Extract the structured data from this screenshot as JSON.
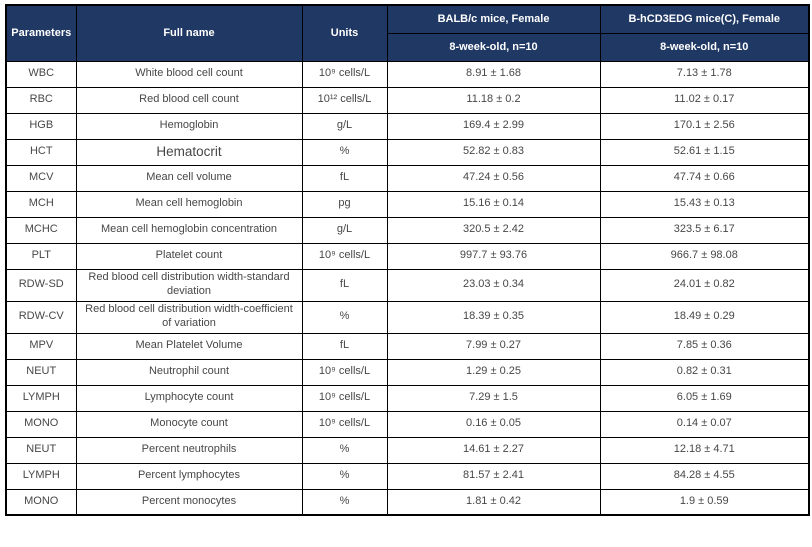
{
  "header": {
    "parameters": "Parameters",
    "full_name": "Full name",
    "units": "Units",
    "group1_title": "BALB/c mice, Female",
    "group1_subtitle": "8-week-old, n=10",
    "group2_title": "B-hCD3EDG mice(C), Female",
    "group2_subtitle": "8-week-old, n=10"
  },
  "colors": {
    "header_bg": "#1F3864",
    "header_text": "#FFFFFF",
    "border": "#000000",
    "body_text": "#474747"
  },
  "rows": [
    {
      "param": "WBC",
      "name": "White blood cell count",
      "units": "10⁹ cells/L",
      "balbc": "8.91 ± 1.68",
      "bhcd3edg": "7.13 ± 1.78"
    },
    {
      "param": "RBC",
      "name": "Red blood cell count",
      "units": "10¹² cells/L",
      "balbc": "11.18 ± 0.2",
      "bhcd3edg": "11.02 ± 0.17"
    },
    {
      "param": "HGB",
      "name": "Hemoglobin",
      "units": "g/L",
      "balbc": "169.4 ± 2.99",
      "bhcd3edg": "170.1 ± 2.56"
    },
    {
      "param": "HCT",
      "name": "Hematocrit",
      "units": "%",
      "balbc": "52.82 ± 0.83",
      "bhcd3edg": "52.61 ± 1.15"
    },
    {
      "param": "MCV",
      "name": "Mean cell volume",
      "units": "fL",
      "balbc": "47.24 ± 0.56",
      "bhcd3edg": "47.74 ± 0.66"
    },
    {
      "param": "MCH",
      "name": "Mean cell hemoglobin",
      "units": "pg",
      "balbc": "15.16 ± 0.14",
      "bhcd3edg": "15.43 ± 0.13"
    },
    {
      "param": "MCHC",
      "name": "Mean cell hemoglobin concentration",
      "units": "g/L",
      "balbc": "320.5 ± 2.42",
      "bhcd3edg": "323.5 ± 6.17"
    },
    {
      "param": "PLT",
      "name": "Platelet count",
      "units": "10⁹ cells/L",
      "balbc": "997.7 ± 93.76",
      "bhcd3edg": "966.7 ± 98.08"
    },
    {
      "param": "RDW-SD",
      "name": "Red blood cell distribution width-standard deviation",
      "units": "fL",
      "balbc": "23.03 ± 0.34",
      "bhcd3edg": "24.01 ± 0.82"
    },
    {
      "param": "RDW-CV",
      "name": "Red blood cell distribution width-coefficient of variation",
      "units": "%",
      "balbc": "18.39 ± 0.35",
      "bhcd3edg": "18.49 ± 0.29"
    },
    {
      "param": "MPV",
      "name": "Mean Platelet Volume",
      "units": "fL",
      "balbc": "7.99 ± 0.27",
      "bhcd3edg": "7.85 ± 0.36"
    },
    {
      "param": "NEUT",
      "name": "Neutrophil count",
      "units": "10⁹ cells/L",
      "balbc": "1.29 ± 0.25",
      "bhcd3edg": "0.82 ± 0.31"
    },
    {
      "param": "LYMPH",
      "name": "Lymphocyte count",
      "units": "10⁹ cells/L",
      "balbc": "7.29 ± 1.5",
      "bhcd3edg": "6.05 ± 1.69"
    },
    {
      "param": "MONO",
      "name": "Monocyte count",
      "units": "10⁹ cells/L",
      "balbc": "0.16 ± 0.05",
      "bhcd3edg": "0.14 ± 0.07"
    },
    {
      "param": "NEUT",
      "name": "Percent neutrophils",
      "units": "%",
      "balbc": "14.61 ± 2.27",
      "bhcd3edg": "12.18 ± 4.71"
    },
    {
      "param": "LYMPH",
      "name": "Percent lymphocytes",
      "units": "%",
      "balbc": "81.57 ± 2.41",
      "bhcd3edg": "84.28 ± 4.55"
    },
    {
      "param": "MONO",
      "name": "Percent monocytes",
      "units": "%",
      "balbc": "1.81 ± 0.42",
      "bhcd3edg": "1.9 ± 0.59"
    }
  ]
}
